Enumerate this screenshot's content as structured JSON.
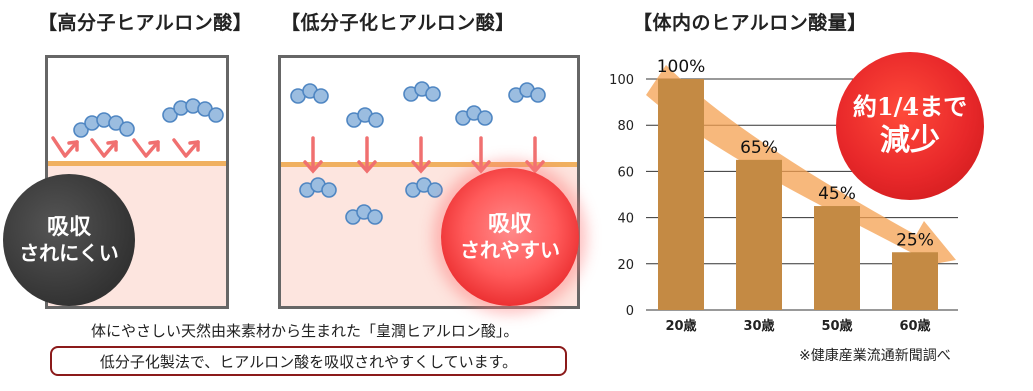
{
  "titles": {
    "high": "【高分子ヒアルロン酸】",
    "low": "【低分子化ヒアルロン酸】",
    "chart": "【体内のヒアルロン酸量】"
  },
  "badges": {
    "high_line1": "吸収",
    "high_line2": "されにくい",
    "low_line1": "吸収",
    "low_line2": "されやすい",
    "decrease_line1": "約1/4まで",
    "decrease_line2": "減少"
  },
  "captions": {
    "line1": "体にやさしい天然由来素材から生まれた「皇潤ヒアルロン酸」。",
    "line2": "低分子化製法で、ヒアルロン酸を吸収されやすくしています。"
  },
  "source_note": "※健康産業流通新聞調べ",
  "colors": {
    "bar": "#c48a44",
    "arrow": "#f4a050",
    "red_badge": "#e8282a",
    "dark_badge": "#3a3a3a",
    "skin": "#fde5df",
    "molecule": "#9bbde0"
  },
  "chart_data": {
    "type": "bar",
    "categories": [
      "20歳",
      "30歳",
      "50歳",
      "60歳"
    ],
    "values": [
      100,
      65,
      45,
      25
    ],
    "data_labels": [
      "100%",
      "65%",
      "45%",
      "25%"
    ],
    "yticks": [
      0,
      20,
      40,
      60,
      80,
      100
    ],
    "ylim": [
      0,
      100
    ],
    "grid": true
  }
}
